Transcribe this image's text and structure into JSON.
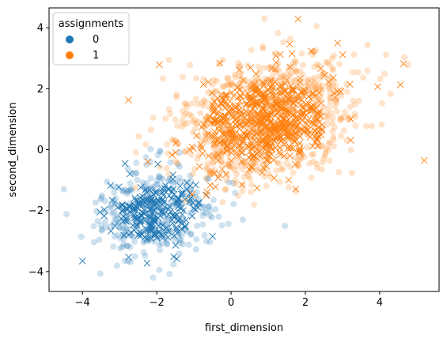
{
  "chart_data": {
    "type": "scatter",
    "title": "",
    "xlabel": "first_dimension",
    "ylabel": "second_dimension",
    "xlim": [
      -4.9,
      5.6
    ],
    "ylim": [
      -4.65,
      4.65
    ],
    "xticks": [
      -4,
      -2,
      0,
      2,
      4
    ],
    "yticks": [
      -4,
      -2,
      0,
      2,
      4
    ],
    "grid": false,
    "legend": {
      "title": "assignments",
      "placement": "top-left",
      "entries": [
        {
          "label": "0",
          "color": "#1f77b4"
        },
        {
          "label": "1",
          "color": "#ff7f0e"
        }
      ]
    },
    "marker_styles": {
      "circle": "faint filled circle (low opacity)",
      "cross": "x marker"
    },
    "series": [
      {
        "group": "0",
        "color": "#1f77b4",
        "center": [
          -2.0,
          -2.05
        ],
        "spread": [
          0.75,
          0.65
        ],
        "approx_points": 520,
        "seed": 7
      },
      {
        "group": "1",
        "color": "#ff7f0e",
        "center": [
          0.95,
          0.95
        ],
        "spread": [
          1.15,
          0.95
        ],
        "approx_points": 1250,
        "seed": 19
      }
    ],
    "notable_points": [
      {
        "group": "1",
        "x": 0.9,
        "y": 4.3
      },
      {
        "group": "1",
        "x": 2.3,
        "y": 4.05
      },
      {
        "group": "1",
        "x": 5.2,
        "y": -0.35
      },
      {
        "group": "1",
        "x": -2.1,
        "y": 1.05
      },
      {
        "group": "0",
        "x": -4.5,
        "y": -1.3
      },
      {
        "group": "0",
        "x": -4.0,
        "y": -3.65
      },
      {
        "group": "0",
        "x": -2.1,
        "y": -4.2
      },
      {
        "group": "0",
        "x": 1.45,
        "y": -2.5
      }
    ]
  }
}
